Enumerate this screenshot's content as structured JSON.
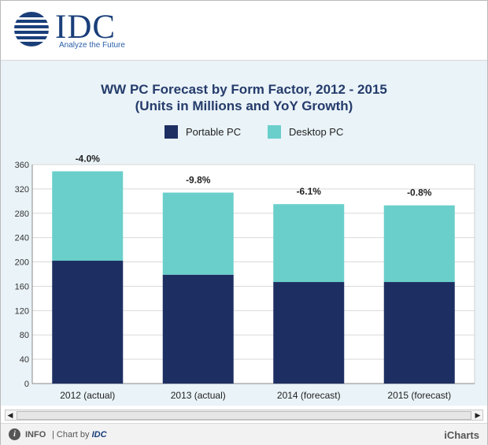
{
  "header": {
    "logo_name": "IDC",
    "logo_tagline": "Analyze the Future"
  },
  "legend": {
    "portable": "Portable PC",
    "desktop": "Desktop PC"
  },
  "colors": {
    "portable": "#1d2f62",
    "desktop": "#6acfcb"
  },
  "chart_data": {
    "type": "bar",
    "stacked": true,
    "title": "WW PC Forecast by Form Factor, 2012 - 2015",
    "subtitle": "(Units in Millions and YoY Growth)",
    "xlabel": "",
    "ylabel": "",
    "categories": [
      "2012 (actual)",
      "2013 (actual)",
      "2014 (forecast)",
      "2015 (forecast)"
    ],
    "series": [
      {
        "name": "Portable PC",
        "values": [
          202,
          179,
          167,
          167
        ]
      },
      {
        "name": "Desktop PC",
        "values": [
          147,
          135,
          128,
          126
        ]
      }
    ],
    "totals": [
      349,
      314,
      295,
      293
    ],
    "annotations": [
      "-4.0%",
      "-9.8%",
      "-6.1%",
      "-0.8%"
    ],
    "ylim": [
      0,
      360
    ],
    "yticks": [
      0,
      40,
      80,
      120,
      160,
      200,
      240,
      280,
      320,
      360
    ],
    "grid": true,
    "legend_position": "top-center"
  },
  "footer": {
    "info_icon": "i",
    "info": "INFO",
    "chart_by": "| Chart by",
    "chart_by_brand": "IDC",
    "icharts": "iCharts"
  },
  "scrollbar": {
    "left_arrow": "◀",
    "right_arrow": "▶"
  }
}
